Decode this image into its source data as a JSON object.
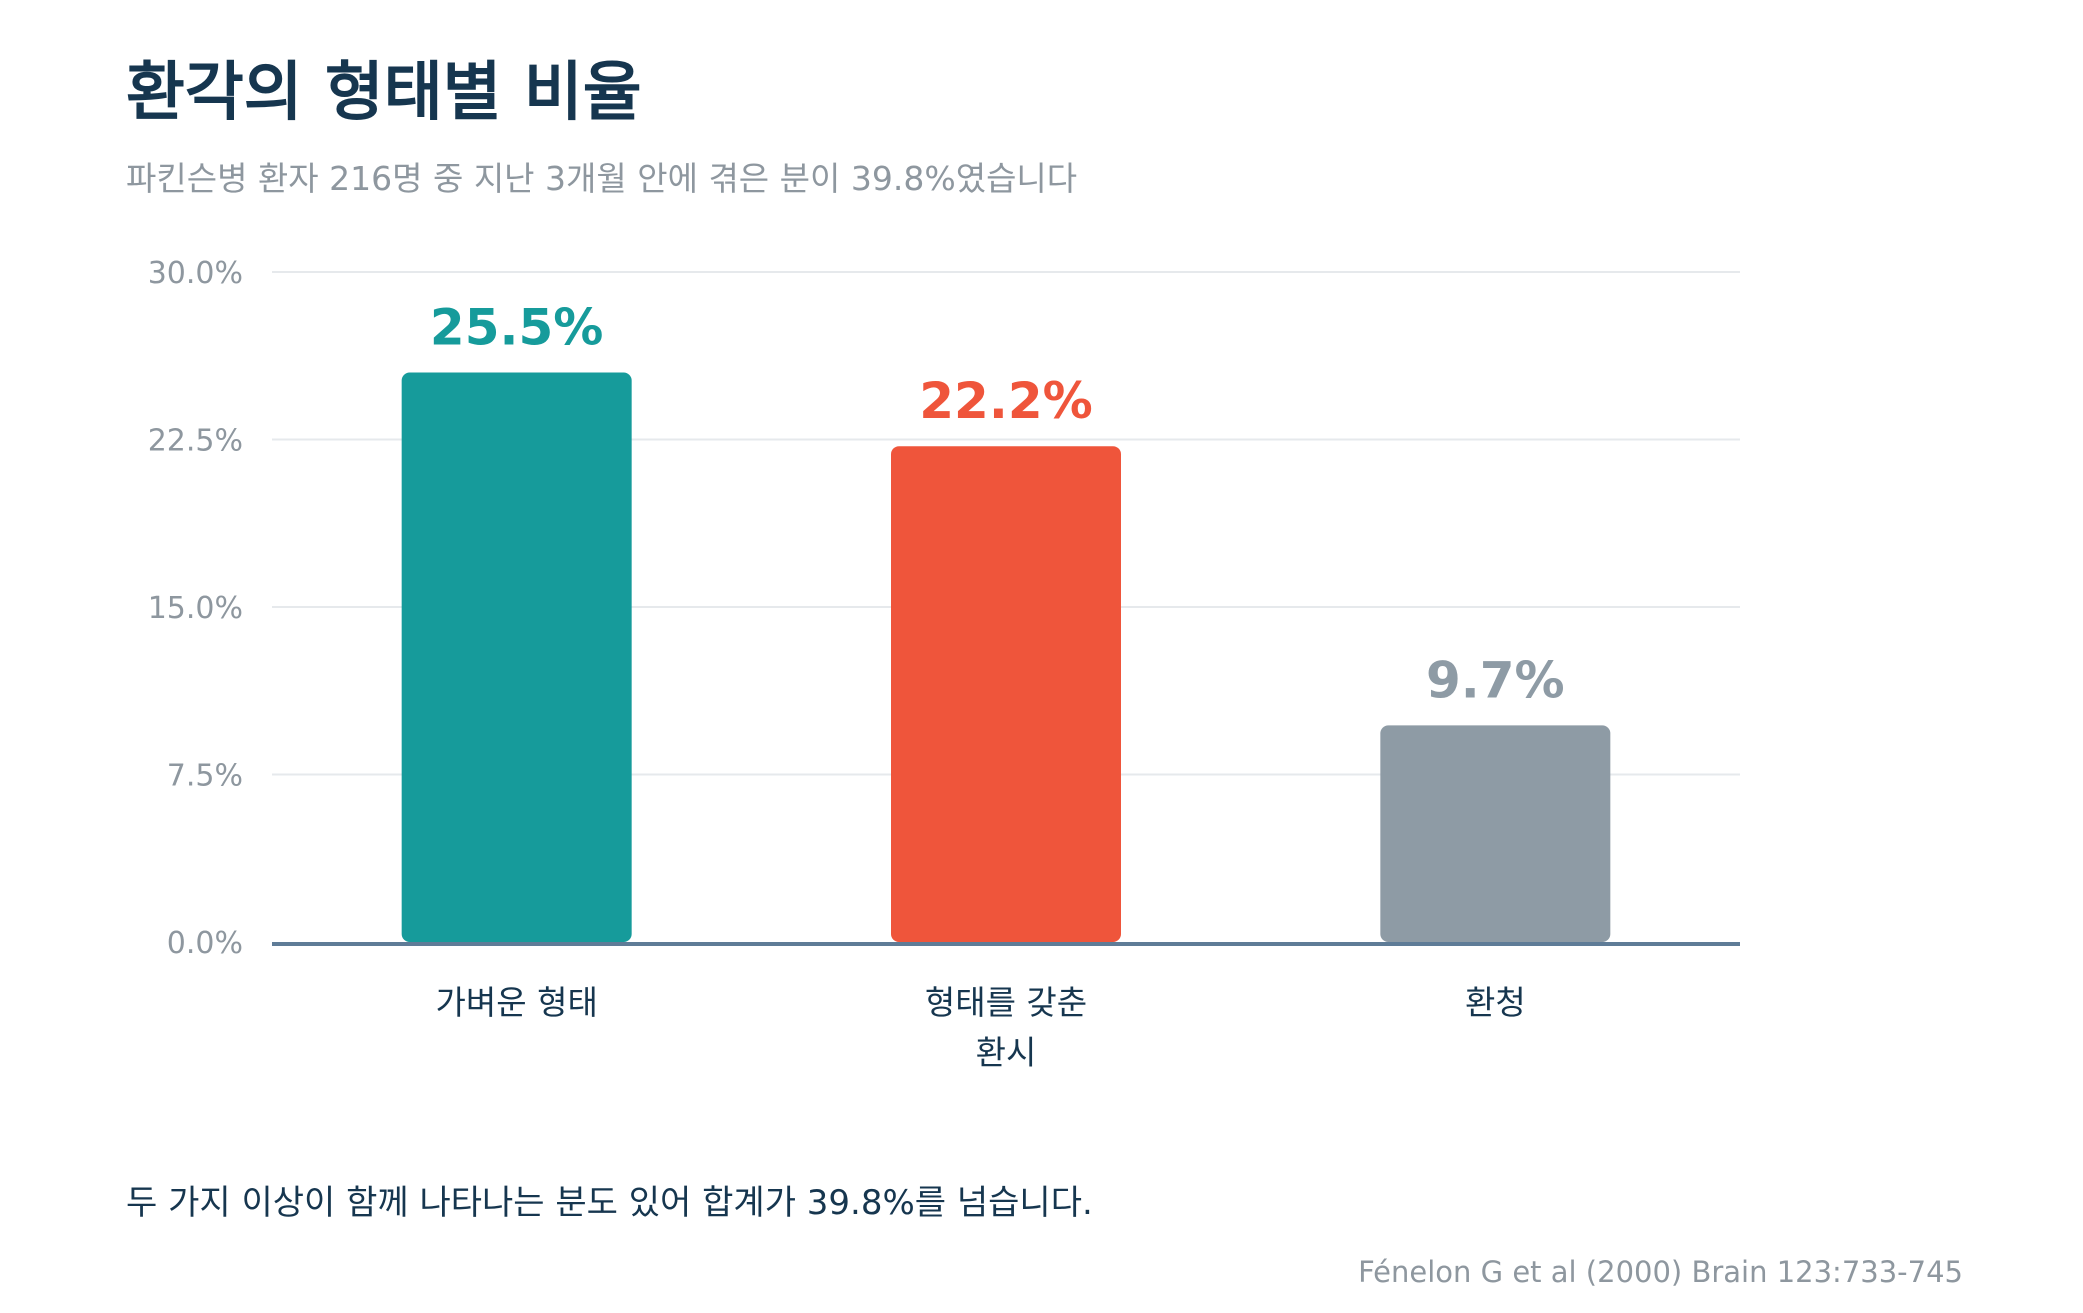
{
  "title": "환각의 형태별 비율",
  "subtitle": "파킨슨병 환자 216명 중 지난 3개월 안에 겪은 분이 39.8%였습니다",
  "note": "두 가지 이상이 함께 나타나는 분도 있어 합계가 39.8%를 넘습니다.",
  "source": "Fénelon G et al (2000) Brain 123:733-745",
  "chart_data": {
    "type": "bar",
    "categories": [
      "가벼운 형태",
      "형태를 갖춘 환시",
      "환청"
    ],
    "category_lines": [
      [
        "가벼운 형태"
      ],
      [
        "형태를 갖춘",
        "환시"
      ],
      [
        "환청"
      ]
    ],
    "values": [
      25.5,
      22.2,
      9.7
    ],
    "value_labels": [
      "25.5%",
      "22.2%",
      "9.7%"
    ],
    "colors": [
      "#169b9b",
      "#ef553b",
      "#8e9ba5"
    ],
    "ylim": [
      0,
      30
    ],
    "yticks": [
      0,
      7.5,
      15,
      22.5,
      30
    ],
    "ytick_labels": [
      "0.0%",
      "7.5%",
      "15.0%",
      "22.5%",
      "30.0%"
    ],
    "grid": true,
    "xlabel": "",
    "ylabel": ""
  }
}
